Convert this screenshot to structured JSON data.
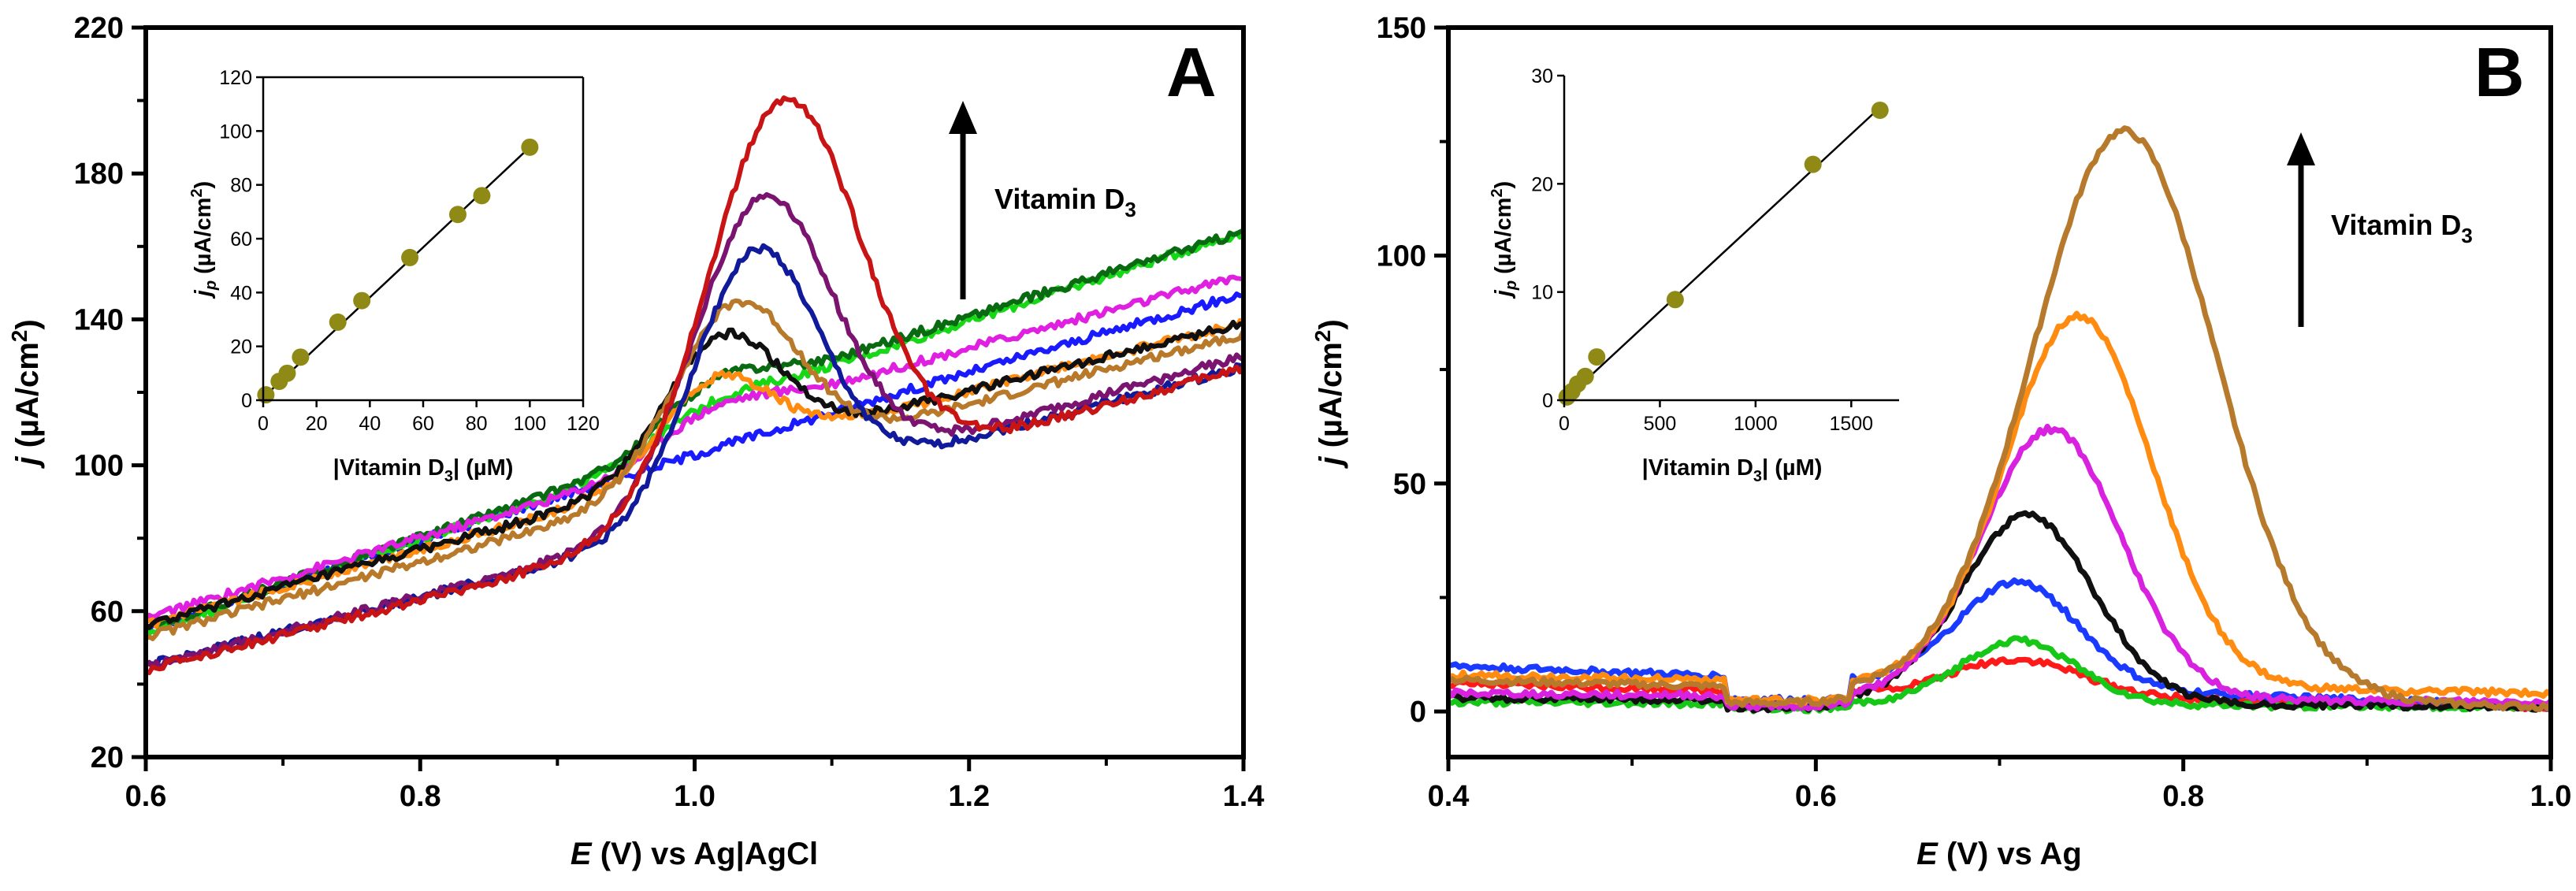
{
  "figure": {
    "panels": [
      {
        "label": "A",
        "arrow_text": "Vitamin D",
        "arrow_sub": "3"
      },
      {
        "label": "B",
        "arrow_text": "Vitamin D",
        "arrow_sub": "3"
      }
    ]
  },
  "chart_data": [
    {
      "type": "line",
      "panel": "A",
      "title": "",
      "xlabel_italic": "E",
      "xlabel_rest": " (V) vs Ag|AgCl",
      "ylabel_italic": "j",
      "ylabel_rest": " (µA/cm",
      "ylabel_sup": "2",
      "ylabel_end": ")",
      "xlim": [
        0.6,
        1.4
      ],
      "ylim": [
        20,
        220
      ],
      "xticks": [
        0.6,
        0.8,
        1.0,
        1.2,
        1.4
      ],
      "xtick_labels": [
        "0.6",
        "0.8",
        "1.0",
        "1.2",
        "1.4"
      ],
      "yticks": [
        20,
        60,
        100,
        140,
        180,
        220
      ],
      "ytick_labels": [
        "20",
        "60",
        "100",
        "140",
        "180",
        "220"
      ],
      "series": [
        {
          "name": "blue",
          "color": "#1a1aff",
          "start": 55,
          "slope": 100,
          "end_fix": -8,
          "peak": 0,
          "mu": 1.0,
          "sigma": 0.05,
          "step": 0,
          "s_center": 0.96,
          "noise": 1.2
        },
        {
          "name": "green",
          "color": "#17d817",
          "start": 54,
          "slope": 103,
          "end_fix": -3,
          "peak": 2,
          "mu": 1.02,
          "sigma": 0.04,
          "step": 10,
          "s_center": 0.97,
          "noise": 1.2
        },
        {
          "name": "dark green",
          "color": "#0a6a12",
          "start": 55,
          "slope": 103,
          "end_fix": -6,
          "peak": 6,
          "mu": 1.02,
          "sigma": 0.035,
          "step": 12,
          "s_center": 0.97,
          "noise": 1.2
        },
        {
          "name": "magenta",
          "color": "#e020e0",
          "start": 58,
          "slope": 90,
          "end_fix": -6,
          "peak": 4,
          "mu": 1.02,
          "sigma": 0.04,
          "step": 10,
          "s_center": 0.97,
          "noise": 1.2
        },
        {
          "name": "orange",
          "color": "#ff8c10",
          "start": 56,
          "slope": 85,
          "end_fix": -6,
          "peak": 22,
          "mu": 1.015,
          "sigma": 0.04,
          "step": 4,
          "s_center": 0.97,
          "noise": 1.2
        },
        {
          "name": "black",
          "color": "#101010",
          "start": 56,
          "slope": 85,
          "end_fix": -6,
          "peak": 33,
          "mu": 1.02,
          "sigma": 0.042,
          "step": 4,
          "s_center": 0.97,
          "noise": 1.2
        },
        {
          "name": "brown",
          "color": "#b87a2a",
          "start": 53,
          "slope": 83,
          "end_fix": -3,
          "peak": 45,
          "mu": 1.03,
          "sigma": 0.045,
          "step": 3,
          "s_center": 0.97,
          "noise": 1.2
        },
        {
          "name": "navy",
          "color": "#101a9a",
          "start": 45,
          "slope": 75,
          "end_fix": 2,
          "peak": 67,
          "mu": 1.045,
          "sigma": 0.045,
          "step": 5,
          "s_center": 0.98,
          "noise": 1.2
        },
        {
          "name": "purple",
          "color": "#7a1470",
          "start": 45,
          "slope": 75,
          "end_fix": 5,
          "peak": 80,
          "mu": 1.05,
          "sigma": 0.05,
          "step": 5,
          "s_center": 0.98,
          "noise": 1.2
        },
        {
          "name": "red",
          "color": "#c81414",
          "start": 44,
          "slope": 75,
          "end_fix": 5,
          "peak": 108,
          "mu": 1.065,
          "sigma": 0.055,
          "step": 3,
          "s_center": 0.98,
          "noise": 1.2
        }
      ]
    },
    {
      "type": "scatter",
      "panel": "A-inset",
      "xlabel_pre": "|Vitamin D",
      "xlabel_sub": "3",
      "xlabel_post": "| (µM)",
      "ylabel_italic": "j",
      "ylabel_sub": "p",
      "ylabel_rest": " (µA/cm",
      "ylabel_sup": "2",
      "ylabel_end": ")",
      "xlim": [
        0,
        120
      ],
      "ylim": [
        0,
        120
      ],
      "xticks": [
        0,
        20,
        40,
        60,
        80,
        100,
        120
      ],
      "xtick_labels": [
        "0",
        "20",
        "40",
        "60",
        "80",
        "100",
        "120"
      ],
      "yticks": [
        0,
        20,
        40,
        60,
        80,
        100,
        120
      ],
      "ytick_labels": [
        "0",
        "20",
        "40",
        "60",
        "80",
        "100",
        "120"
      ],
      "marker_color": "#8f8a16",
      "x": [
        1,
        6,
        9,
        14,
        28,
        37,
        55,
        73,
        82,
        100
      ],
      "y": [
        2,
        7,
        10,
        16,
        29,
        37,
        53,
        69,
        76,
        94
      ],
      "fit": {
        "slope": 0.93,
        "intercept": 1.0,
        "x_range": [
          0,
          100
        ]
      }
    },
    {
      "type": "line",
      "panel": "B",
      "title": "",
      "xlabel_italic": "E",
      "xlabel_rest": " (V) vs Ag",
      "ylabel_italic": "j",
      "ylabel_rest": " (µA/cm",
      "ylabel_sup": "2",
      "ylabel_end": ")",
      "xlim": [
        0.4,
        1.0
      ],
      "ylim": [
        -10,
        150
      ],
      "xticks": [
        0.4,
        0.6,
        0.8,
        1.0
      ],
      "xtick_labels": [
        "0.4",
        "0.6",
        "0.8",
        "1.0"
      ],
      "yticks": [
        0,
        50,
        100,
        150
      ],
      "ytick_labels": [
        "0",
        "50",
        "100",
        "150"
      ],
      "series": [
        {
          "name": "red",
          "color": "#ff1a1a",
          "base_start": 6,
          "base_end": 1,
          "peak": 8,
          "mu": 0.71,
          "sigma": 0.035,
          "noise": 0.7
        },
        {
          "name": "green",
          "color": "#17c717",
          "base_start": 2,
          "base_end": 1,
          "peak": 14,
          "mu": 0.71,
          "sigma": 0.032,
          "noise": 0.7
        },
        {
          "name": "blue",
          "color": "#1a3aff",
          "base_start": 10,
          "base_end": 1,
          "peak": 23,
          "mu": 0.71,
          "sigma": 0.033,
          "noise": 0.7
        },
        {
          "name": "black",
          "color": "#101010",
          "base_start": 3,
          "base_end": 1,
          "peak": 41,
          "mu": 0.715,
          "sigma": 0.036,
          "noise": 0.7
        },
        {
          "name": "magenta",
          "color": "#d822e0",
          "base_start": 4,
          "base_end": 2,
          "peak": 59,
          "mu": 0.728,
          "sigma": 0.038,
          "noise": 0.7
        },
        {
          "name": "orange",
          "color": "#ff8c10",
          "base_start": 8,
          "base_end": 4,
          "peak": 81,
          "mu": 0.743,
          "sigma": 0.04,
          "noise": 0.7
        },
        {
          "name": "brown",
          "color": "#b77a2c",
          "base_start": 7,
          "base_end": 1,
          "peak": 124,
          "mu": 0.768,
          "sigma": 0.05,
          "noise": 0.7
        }
      ]
    },
    {
      "type": "scatter",
      "panel": "B-inset",
      "xlabel_pre": "|Vitamin D",
      "xlabel_sub": "3",
      "xlabel_post": "| (µM)",
      "ylabel_italic": "j",
      "ylabel_sub": "p",
      "ylabel_rest": " (µA/cm",
      "ylabel_sup": "2",
      "ylabel_end": ")",
      "xlim": [
        0,
        1750
      ],
      "ylim": [
        0,
        30
      ],
      "xticks": [
        0,
        500,
        1000,
        1500
      ],
      "xtick_labels": [
        "0",
        "500",
        "1000",
        "1500"
      ],
      "yticks": [
        0,
        10,
        20,
        30
      ],
      "ytick_labels": [
        "0",
        "10",
        "20",
        "30"
      ],
      "marker_color": "#8f8a16",
      "x": [
        15,
        40,
        70,
        110,
        170,
        580,
        1300,
        1650
      ],
      "y": [
        0.3,
        0.8,
        1.5,
        2.2,
        4.0,
        9.3,
        21.8,
        26.8
      ],
      "fit": {
        "slope": 0.0164,
        "intercept": 0.0,
        "x_range": [
          0,
          1650
        ]
      }
    }
  ]
}
